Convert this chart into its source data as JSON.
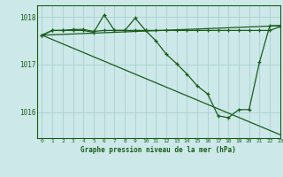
{
  "bg_color": "#cce8e8",
  "grid_color": "#aacfcf",
  "line_color": "#1a5c1a",
  "xlabel": "Graphe pression niveau de la mer (hPa)",
  "xlim": [
    -0.5,
    23
  ],
  "ylim": [
    1015.45,
    1018.25
  ],
  "yticks": [
    1016,
    1017,
    1018
  ],
  "xticks": [
    0,
    1,
    2,
    3,
    4,
    5,
    6,
    7,
    8,
    9,
    10,
    11,
    12,
    13,
    14,
    15,
    16,
    17,
    18,
    19,
    20,
    21,
    22,
    23
  ],
  "series_flat_top": {
    "x": [
      0,
      1,
      2,
      3,
      4,
      5,
      6,
      7,
      8,
      9,
      10,
      11,
      12,
      13,
      14,
      15,
      16,
      17,
      18,
      19,
      20,
      21,
      22,
      23
    ],
    "y": [
      1017.62,
      1017.72,
      1017.72,
      1017.74,
      1017.74,
      1017.7,
      1017.72,
      1017.72,
      1017.72,
      1017.72,
      1017.72,
      1017.72,
      1017.72,
      1017.72,
      1017.72,
      1017.72,
      1017.72,
      1017.72,
      1017.72,
      1017.72,
      1017.72,
      1017.72,
      1017.72,
      1017.8
    ]
  },
  "series_zigzag": {
    "x": [
      0,
      1,
      2,
      3,
      4,
      5,
      6,
      7,
      8,
      9,
      10,
      11,
      12,
      13,
      14,
      15,
      16,
      17,
      18,
      19,
      20,
      21,
      22,
      23
    ],
    "y": [
      1017.62,
      1017.72,
      1017.72,
      1017.72,
      1017.72,
      1017.68,
      1018.05,
      1017.72,
      1017.72,
      1017.98,
      1017.72,
      1017.5,
      1017.22,
      1017.02,
      1016.8,
      1016.55,
      1016.38,
      1015.92,
      1015.88,
      1016.05,
      1016.05,
      1017.05,
      1017.82,
      1017.82
    ]
  },
  "series_diag_down": {
    "x": [
      0,
      23
    ],
    "y": [
      1017.62,
      1015.52
    ]
  },
  "series_diag_up": {
    "x": [
      0,
      23
    ],
    "y": [
      1017.62,
      1017.82
    ]
  }
}
